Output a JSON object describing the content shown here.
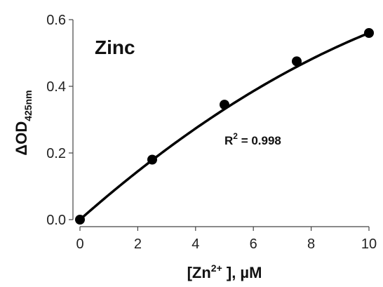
{
  "chart_data": {
    "type": "scatter",
    "title": "Zinc",
    "xlabel": {
      "prefix": "[Zn",
      "sup": "2+",
      "suffix": " ], µM"
    },
    "ylabel": {
      "main": "ΔOD",
      "sub": "425nm"
    },
    "xlim": [
      0,
      10
    ],
    "ylim": [
      0,
      0.6
    ],
    "x_ticks": [
      "0",
      "2",
      "4",
      "6",
      "8",
      "10"
    ],
    "y_ticks": [
      "0.0",
      "0.2",
      "0.4",
      "0.6"
    ],
    "grid": false,
    "series": [
      {
        "x": [
          0,
          2.5,
          5,
          7.5,
          10
        ],
        "y": [
          0.0,
          0.18,
          0.345,
          0.475,
          0.56
        ],
        "fit": "polynomial",
        "fit_coefficients": [
          0.0,
          0.0766,
          -0.00206
        ]
      }
    ],
    "annotation": {
      "label": "R",
      "sup": "2",
      "value": " = 0.998"
    }
  }
}
